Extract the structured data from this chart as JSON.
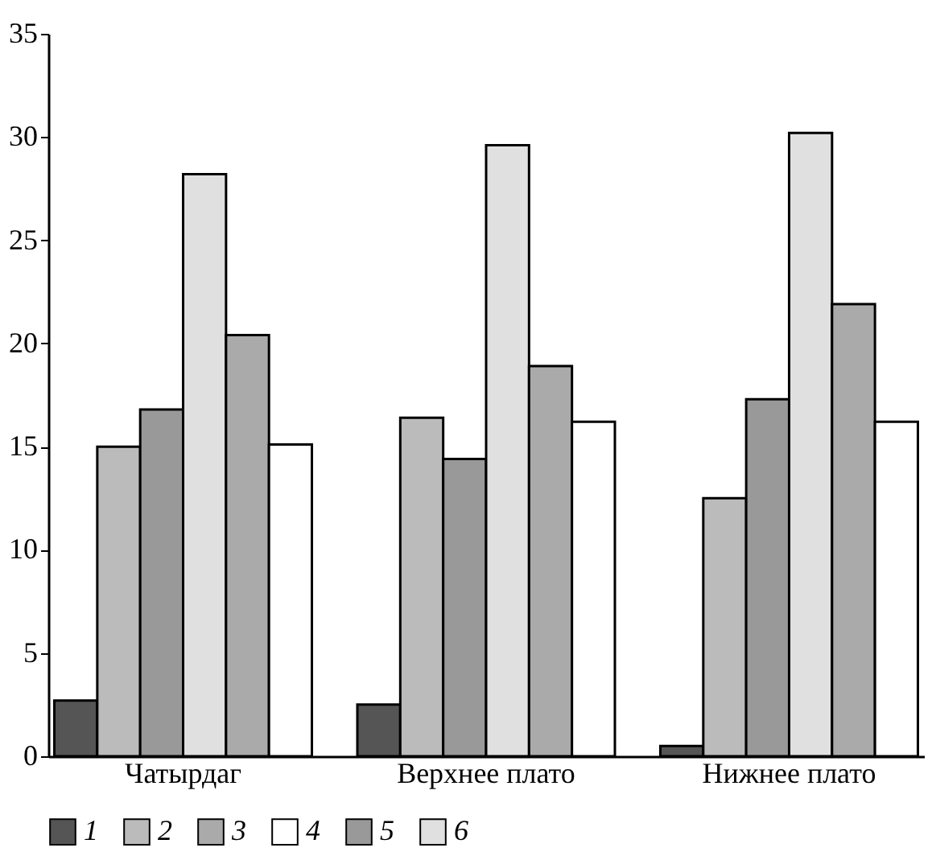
{
  "chart_data": {
    "type": "bar",
    "categories": [
      "Чатырдаг",
      "Верхнее плато",
      "Нижнее плато"
    ],
    "series": [
      {
        "name": "1",
        "color": "#555555",
        "values": [
          2.7,
          2.5,
          0.5
        ]
      },
      {
        "name": "2",
        "color": "#bbbbbb",
        "values": [
          15.0,
          16.4,
          12.5
        ]
      },
      {
        "name": "5",
        "color": "#999999",
        "values": [
          16.8,
          14.4,
          17.3
        ]
      },
      {
        "name": "6",
        "color": "#e0e0e0",
        "values": [
          28.2,
          29.6,
          30.2
        ]
      },
      {
        "name": "3",
        "color": "#aaaaaa",
        "values": [
          20.4,
          18.9,
          21.9
        ]
      },
      {
        "name": "4",
        "color": "#ffffff",
        "values": [
          15.1,
          16.2,
          16.2
        ]
      }
    ],
    "ylim": [
      0,
      35
    ],
    "yticks": [
      0,
      5,
      10,
      15,
      20,
      25,
      30,
      35
    ],
    "grid": false,
    "legend": "bottom"
  }
}
